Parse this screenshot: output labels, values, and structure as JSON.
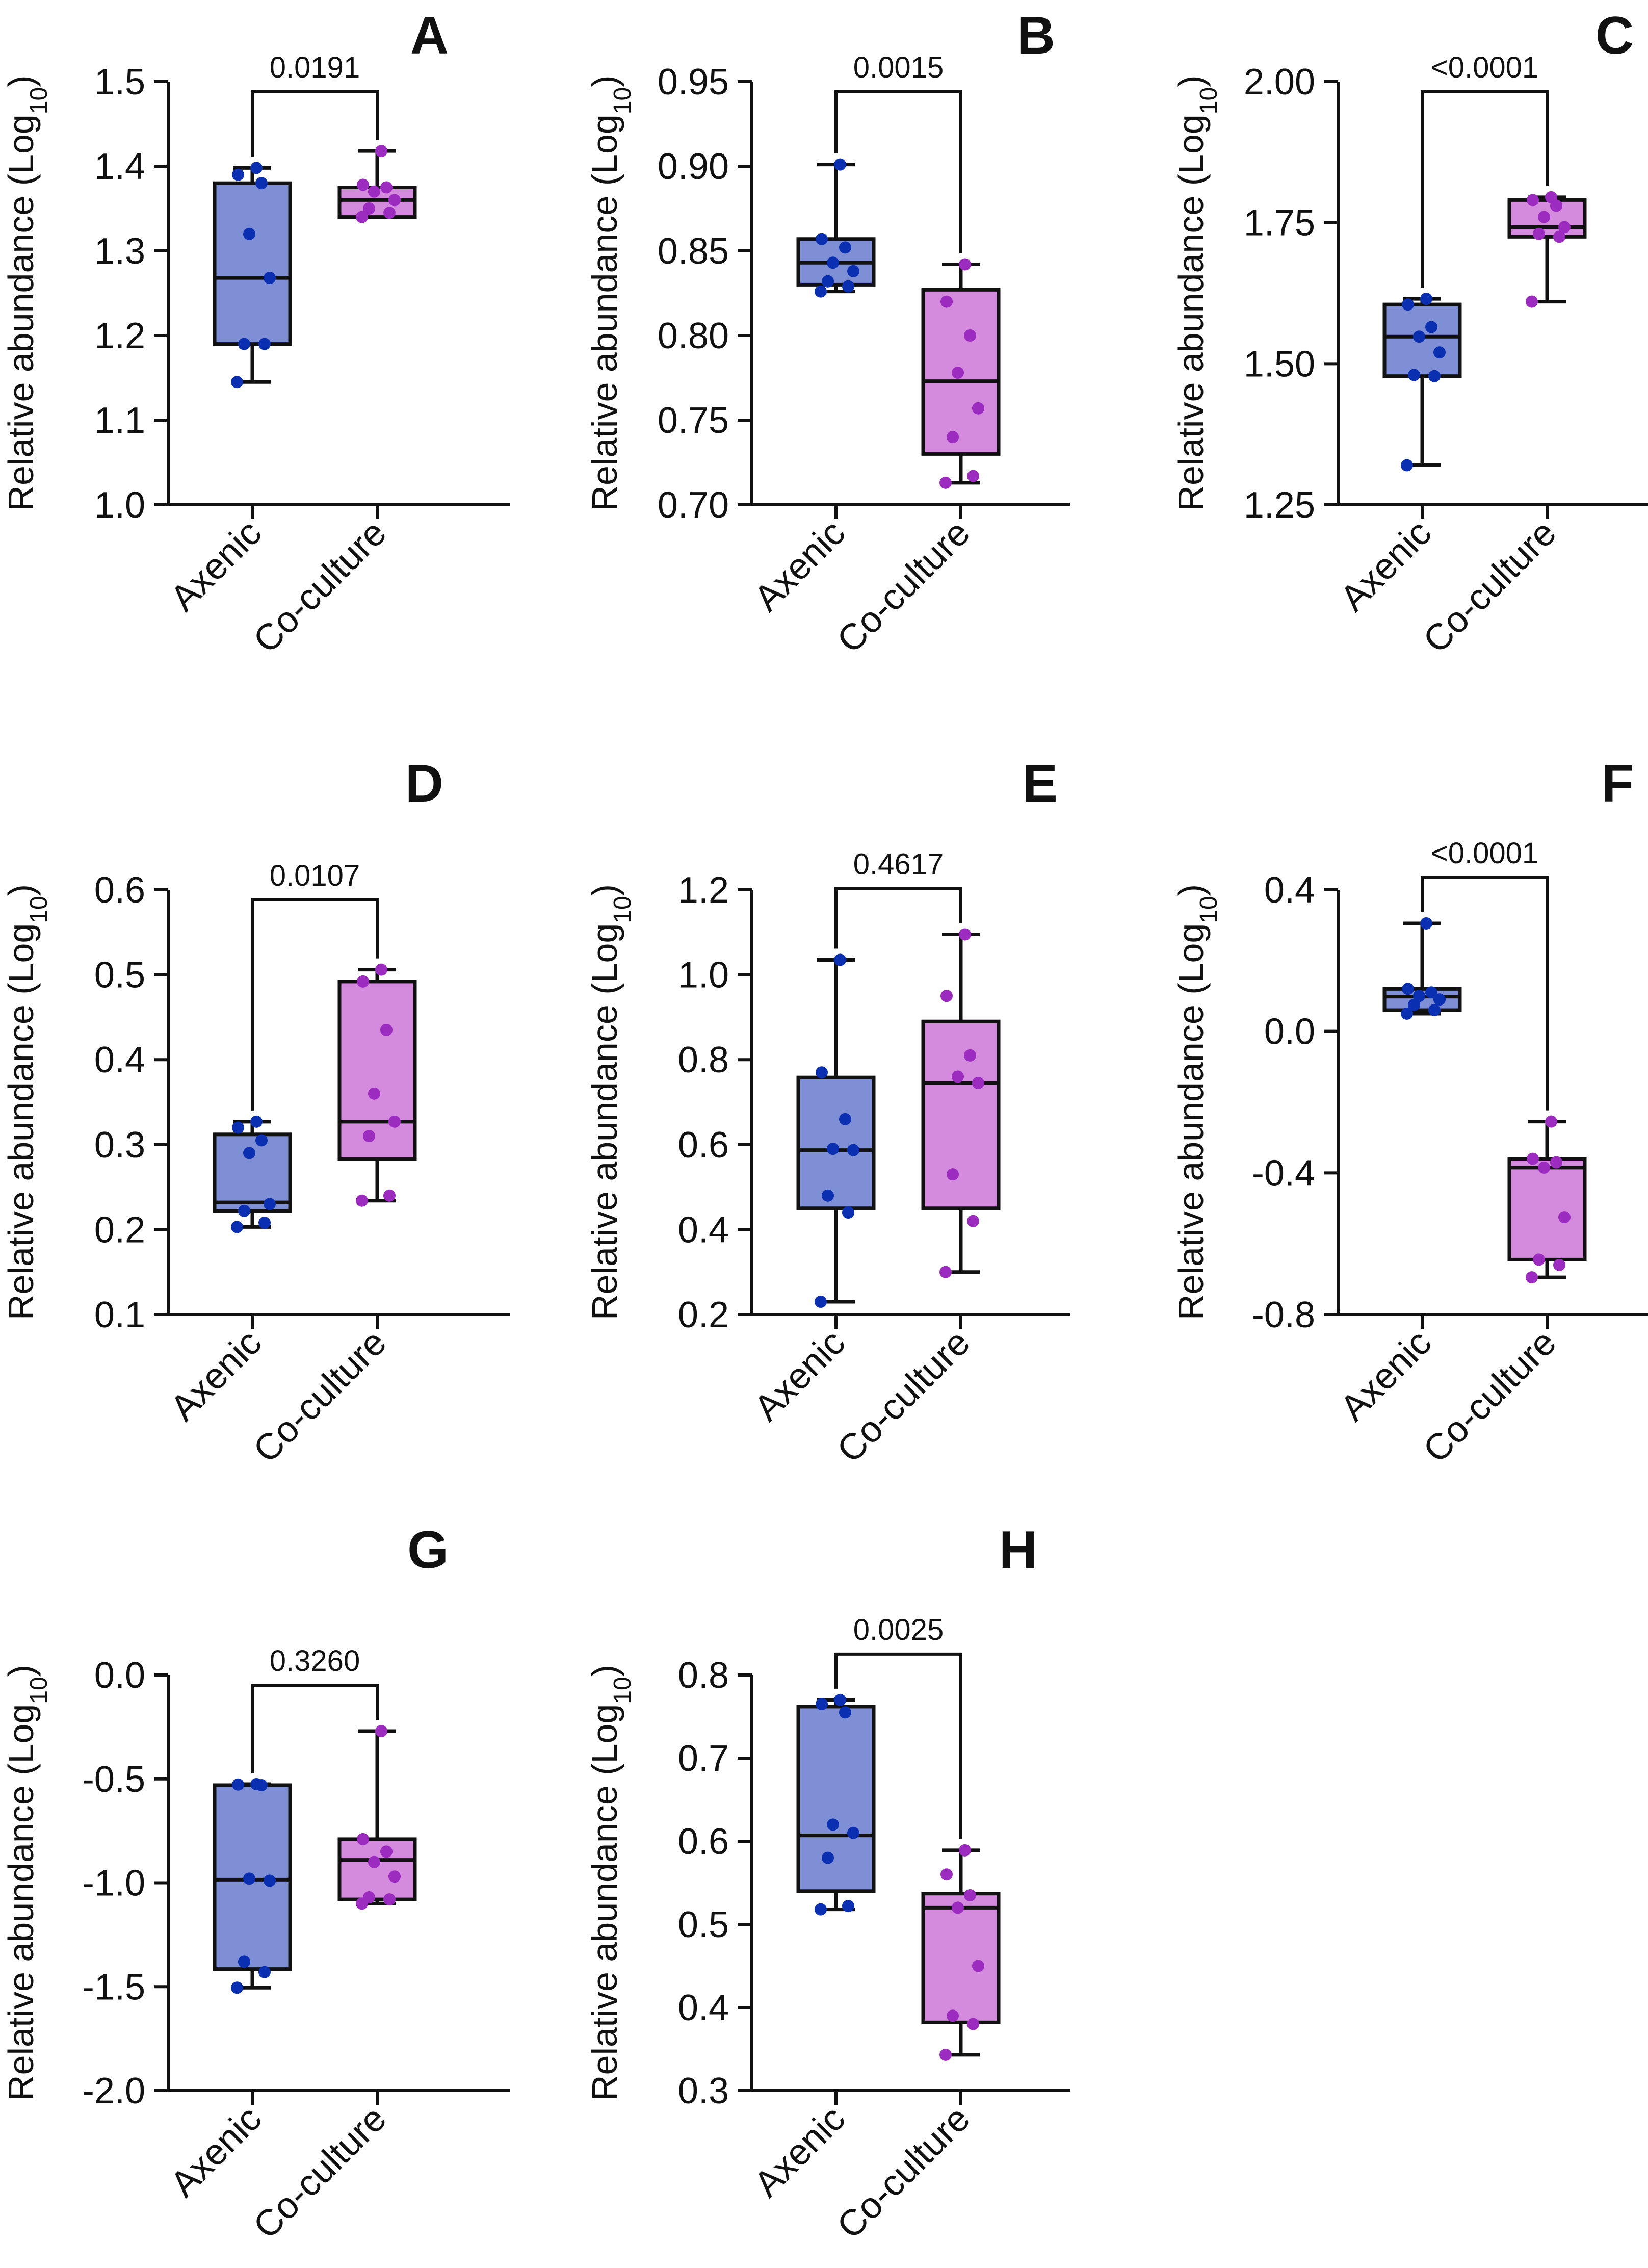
{
  "figure": {
    "group_labels": [
      "Axenic",
      "Co-culture"
    ],
    "ylabel_main": "Relative abundance (Log",
    "ylabel_sub": "10",
    "ylabel_close": ")",
    "colors": {
      "axenic_fill": "#7f8fd6",
      "axenic_dot": "#0a2fb0",
      "coculture_fill": "#d48bdd",
      "coculture_dot": "#9c2bc0",
      "ink": "#111111"
    }
  },
  "chart_data": [
    {
      "panel": "A",
      "type": "box",
      "pvalue": "0.0191",
      "ylim": [
        1.0,
        1.5
      ],
      "yticks": [
        "1.0",
        "1.1",
        "1.2",
        "1.3",
        "1.4",
        "1.5"
      ],
      "series": [
        {
          "name": "Axenic",
          "box": {
            "min": 1.145,
            "q1": 1.19,
            "median": 1.268,
            "q3": 1.38,
            "max": 1.398
          },
          "points": [
            1.145,
            1.19,
            1.19,
            1.268,
            1.32,
            1.38,
            1.39,
            1.398
          ]
        },
        {
          "name": "Co-culture",
          "box": {
            "min": 1.34,
            "q1": 1.34,
            "median": 1.36,
            "q3": 1.375,
            "max": 1.418
          },
          "points": [
            1.34,
            1.345,
            1.35,
            1.36,
            1.37,
            1.375,
            1.378,
            1.418
          ]
        }
      ]
    },
    {
      "panel": "B",
      "type": "box",
      "pvalue": "0.0015",
      "ylim": [
        0.7,
        0.95
      ],
      "yticks": [
        "0.70",
        "0.75",
        "0.80",
        "0.85",
        "0.90",
        "0.95"
      ],
      "series": [
        {
          "name": "Axenic",
          "box": {
            "min": 0.826,
            "q1": 0.83,
            "median": 0.843,
            "q3": 0.857,
            "max": 0.901
          },
          "points": [
            0.826,
            0.829,
            0.832,
            0.838,
            0.843,
            0.852,
            0.857,
            0.901
          ]
        },
        {
          "name": "Co-culture",
          "box": {
            "min": 0.713,
            "q1": 0.73,
            "median": 0.773,
            "q3": 0.827,
            "max": 0.842
          },
          "points": [
            0.713,
            0.717,
            0.74,
            0.757,
            0.778,
            0.8,
            0.82,
            0.842
          ]
        }
      ]
    },
    {
      "panel": "C",
      "type": "box",
      "pvalue": "<0.0001",
      "ylim": [
        1.25,
        2.0
      ],
      "yticks": [
        "1.25",
        "1.50",
        "1.75",
        "2.00"
      ],
      "series": [
        {
          "name": "Axenic",
          "box": {
            "min": 1.32,
            "q1": 1.478,
            "median": 1.548,
            "q3": 1.605,
            "max": 1.615
          },
          "points": [
            1.32,
            1.478,
            1.48,
            1.52,
            1.548,
            1.565,
            1.605,
            1.615
          ]
        },
        {
          "name": "Co-culture",
          "box": {
            "min": 1.61,
            "q1": 1.725,
            "median": 1.742,
            "q3": 1.79,
            "max": 1.795
          },
          "points": [
            1.61,
            1.725,
            1.73,
            1.742,
            1.76,
            1.78,
            1.79,
            1.795
          ]
        }
      ]
    },
    {
      "panel": "D",
      "type": "box",
      "pvalue": "0.0107",
      "ylim": [
        0.1,
        0.6
      ],
      "yticks": [
        "0.1",
        "0.2",
        "0.3",
        "0.4",
        "0.5",
        "0.6"
      ],
      "series": [
        {
          "name": "Axenic",
          "box": {
            "min": 0.203,
            "q1": 0.222,
            "median": 0.232,
            "q3": 0.312,
            "max": 0.327
          },
          "points": [
            0.203,
            0.208,
            0.222,
            0.23,
            0.29,
            0.305,
            0.32,
            0.327
          ]
        },
        {
          "name": "Co-culture",
          "box": {
            "min": 0.234,
            "q1": 0.283,
            "median": 0.327,
            "q3": 0.492,
            "max": 0.506
          },
          "points": [
            0.234,
            0.24,
            0.31,
            0.327,
            0.36,
            0.435,
            0.492,
            0.506
          ]
        }
      ]
    },
    {
      "panel": "E",
      "type": "box",
      "pvalue": "0.4617",
      "ylim": [
        0.2,
        1.2
      ],
      "yticks": [
        "0.2",
        "0.4",
        "0.6",
        "0.8",
        "1.0",
        "1.2"
      ],
      "series": [
        {
          "name": "Axenic",
          "box": {
            "min": 0.23,
            "q1": 0.45,
            "median": 0.587,
            "q3": 0.758,
            "max": 1.035
          },
          "points": [
            0.23,
            0.44,
            0.48,
            0.587,
            0.59,
            0.66,
            0.77,
            1.035
          ]
        },
        {
          "name": "Co-culture",
          "box": {
            "min": 0.3,
            "q1": 0.45,
            "median": 0.745,
            "q3": 0.89,
            "max": 1.095
          },
          "points": [
            0.3,
            0.42,
            0.53,
            0.745,
            0.76,
            0.81,
            0.95,
            1.095
          ]
        }
      ]
    },
    {
      "panel": "F",
      "type": "box",
      "pvalue": "<0.0001",
      "ylim": [
        -0.8,
        0.4
      ],
      "yticks": [
        "-0.8",
        "-0.4",
        "0.0",
        "0.4"
      ],
      "series": [
        {
          "name": "Axenic",
          "box": {
            "min": 0.05,
            "q1": 0.06,
            "median": 0.098,
            "q3": 0.12,
            "max": 0.305
          },
          "points": [
            0.05,
            0.06,
            0.075,
            0.09,
            0.1,
            0.11,
            0.12,
            0.305
          ]
        },
        {
          "name": "Co-culture",
          "box": {
            "min": -0.695,
            "q1": -0.645,
            "median": -0.385,
            "q3": -0.36,
            "max": -0.255
          },
          "points": [
            -0.695,
            -0.66,
            -0.645,
            -0.525,
            -0.385,
            -0.37,
            -0.36,
            -0.255
          ]
        }
      ]
    },
    {
      "panel": "G",
      "type": "box",
      "pvalue": "0.3260",
      "ylim": [
        -2.0,
        0.0
      ],
      "yticks": [
        "-2.0",
        "-1.5",
        "-1.0",
        "-0.5",
        "0.0"
      ],
      "series": [
        {
          "name": "Axenic",
          "box": {
            "min": -1.505,
            "q1": -1.415,
            "median": -0.985,
            "q3": -0.53,
            "max": -0.525
          },
          "points": [
            -1.505,
            -1.43,
            -1.38,
            -0.99,
            -0.98,
            -0.53,
            -0.527,
            -0.525
          ]
        },
        {
          "name": "Co-culture",
          "box": {
            "min": -1.1,
            "q1": -1.08,
            "median": -0.89,
            "q3": -0.79,
            "max": -0.27
          },
          "points": [
            -1.1,
            -1.08,
            -1.07,
            -0.97,
            -0.9,
            -0.85,
            -0.79,
            -0.27
          ]
        }
      ]
    },
    {
      "panel": "H",
      "type": "box",
      "pvalue": "0.0025",
      "ylim": [
        0.3,
        0.8
      ],
      "yticks": [
        "0.3",
        "0.4",
        "0.5",
        "0.6",
        "0.7",
        "0.8"
      ],
      "series": [
        {
          "name": "Axenic",
          "box": {
            "min": 0.518,
            "q1": 0.54,
            "median": 0.607,
            "q3": 0.762,
            "max": 0.77
          },
          "points": [
            0.518,
            0.522,
            0.58,
            0.61,
            0.62,
            0.755,
            0.765,
            0.77
          ]
        },
        {
          "name": "Co-culture",
          "box": {
            "min": 0.343,
            "q1": 0.382,
            "median": 0.52,
            "q3": 0.537,
            "max": 0.589
          },
          "points": [
            0.343,
            0.38,
            0.39,
            0.45,
            0.52,
            0.535,
            0.56,
            0.589
          ]
        }
      ]
    }
  ]
}
